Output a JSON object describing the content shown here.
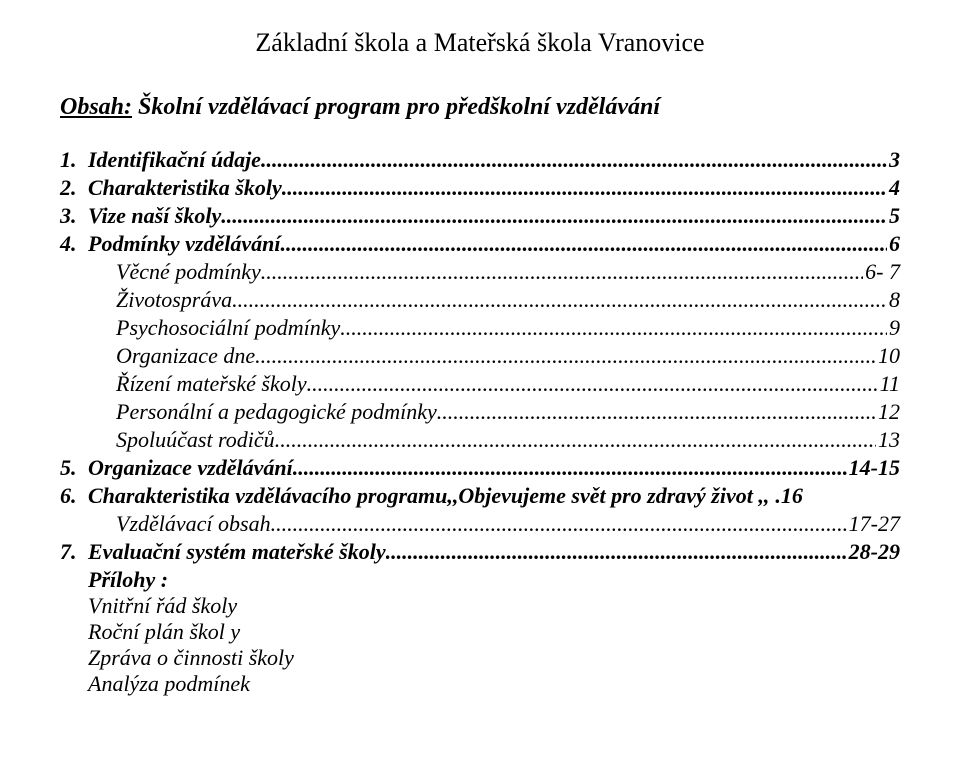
{
  "colors": {
    "text": "#000000",
    "background": "#ffffff"
  },
  "typography": {
    "font_family": "Times New Roman",
    "title_fontsize_pt": 20,
    "heading_fontsize_pt": 18,
    "body_fontsize_pt": 16
  },
  "title": "Základní škola a Mateřská škola Vranovice",
  "obsah": {
    "label": "Obsah:",
    "rest": "  Školní vzdělávací program pro předškolní vzdělávání"
  },
  "toc": [
    {
      "n": "1.",
      "level": 0,
      "style": "bold-it",
      "text": "Identifikační údaje",
      "leader": ".",
      "page": "3"
    },
    {
      "n": "2.",
      "level": 0,
      "style": "bold-it",
      "text": "Charakteristika školy",
      "leader": ".",
      "page": " 4"
    },
    {
      "n": "3.",
      "level": 0,
      "style": "bold-it",
      "text": "Vize naší školy",
      "leader": ".",
      "page": "5"
    },
    {
      "n": "4.",
      "level": 0,
      "style": "bold-it",
      "text": "Podmínky vzdělávání",
      "leader": ".",
      "page": "6"
    },
    {
      "n": "",
      "level": 1,
      "style": "it",
      "text": "Věcné podmínky",
      "leader": ".",
      "page": "6- 7"
    },
    {
      "n": "",
      "level": 1,
      "style": "it",
      "text": "Životospráva",
      "leader": ".",
      "page": "8"
    },
    {
      "n": "",
      "level": 1,
      "style": "it",
      "text": "Psychosociální podmínky",
      "leader": ".",
      "page": "9"
    },
    {
      "n": "",
      "level": 1,
      "style": "it",
      "text": "Organizace dne",
      "leader": ".",
      "page": "10"
    },
    {
      "n": "",
      "level": 1,
      "style": "it",
      "text": "Řízení mateřské školy",
      "leader": ".",
      "page": "11"
    },
    {
      "n": "",
      "level": 1,
      "style": "it",
      "text": "Personální a pedagogické podmínky",
      "leader": ".",
      "page": "12"
    },
    {
      "n": "",
      "level": 1,
      "style": "it",
      "text": "Spoluúčast rodičů",
      "leader": ".",
      "page": " 13"
    },
    {
      "n": "5.",
      "level": 0,
      "style": "bold-it",
      "text": "Organizace vzdělávání",
      "leader": ".",
      "page": "14-15"
    },
    {
      "n": "6.",
      "level": 0,
      "style": "bold-it",
      "text": "Charakteristika vzdělávacího programu,,Objevujeme  svět  pro  zdravý život ,,",
      "leader": "",
      "page": ".16"
    },
    {
      "n": "",
      "level": 1,
      "style": "it",
      "text": "Vzdělávací obsah",
      "leader": ".",
      "page": "17-27"
    },
    {
      "n": "7.",
      "level": 0,
      "style": "bold-it",
      "text": "Evaluační systém mateřské školy",
      "leader": ".",
      "page": "28-29"
    }
  ],
  "appendix": {
    "header": " Přílohy :",
    "items": [
      "Vnitřní řád školy",
      "Roční plán škol y",
      "Zpráva o činnosti školy",
      "Analýza podmínek"
    ]
  }
}
